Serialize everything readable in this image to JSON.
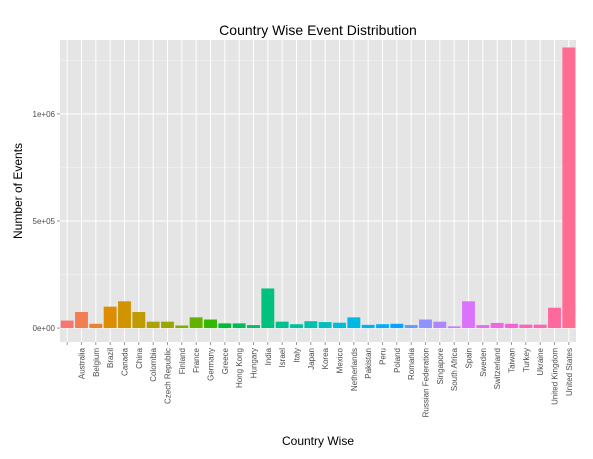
{
  "chart_data": {
    "type": "bar",
    "title": "Country Wise Event Distribution",
    "xlabel": "Country Wise",
    "ylabel": "Number of Events",
    "ylim": [
      -65000,
      1345000
    ],
    "yticks": [
      0,
      500000,
      1000000
    ],
    "ytick_labels": [
      "0e+00",
      "5e+05",
      "1e+06"
    ],
    "grid": true,
    "panel_background": "#e5e5e5",
    "grid_color": "#ffffff",
    "categories": [
      "",
      "Australia",
      "Belgium",
      "Brazil",
      "Canada",
      "China",
      "Colombia",
      "Czech Republic",
      "Finland",
      "France",
      "Germany",
      "Greece",
      "Hong Kong",
      "Hungary",
      "India",
      "Israel",
      "Italy",
      "Japan",
      "Korea",
      "Mexico",
      "Netherlands",
      "Pakistan",
      "Peru",
      "Poland",
      "Romania",
      "Russian Federation",
      "Singapore",
      "South Africa",
      "Spain",
      "Sweden",
      "Switzerland",
      "Taiwan",
      "Turkey",
      "Ukraine",
      "United Kingdom",
      "United States"
    ],
    "values": [
      35000,
      75000,
      20000,
      100000,
      125000,
      75000,
      30000,
      30000,
      12000,
      50000,
      40000,
      22000,
      22000,
      14000,
      185000,
      30000,
      18000,
      32000,
      28000,
      25000,
      50000,
      15000,
      18000,
      20000,
      14000,
      40000,
      30000,
      8000,
      125000,
      14000,
      24000,
      20000,
      16000,
      16000,
      95000,
      1310000
    ],
    "colors": [
      "#F8766D",
      "#F27D52",
      "#EA8331",
      "#DE8C00",
      "#D09400",
      "#C09B00",
      "#AEA200",
      "#99A800",
      "#82AD00",
      "#64B200",
      "#35B700",
      "#00BA38",
      "#00BC56",
      "#00BE6C",
      "#00C17E",
      "#00C08E",
      "#00C0A0",
      "#00C0AF",
      "#00BFBE",
      "#00BCD8",
      "#00B8E5",
      "#00B4F0",
      "#00AEFA",
      "#06A4FF",
      "#619CFF",
      "#8F91FF",
      "#AE87FF",
      "#C77CFF",
      "#DB72FB",
      "#E76BF3",
      "#F265E7",
      "#FB61D7",
      "#FF62BC",
      "#FF65AC",
      "#FF689E",
      "#FF6C91"
    ]
  }
}
